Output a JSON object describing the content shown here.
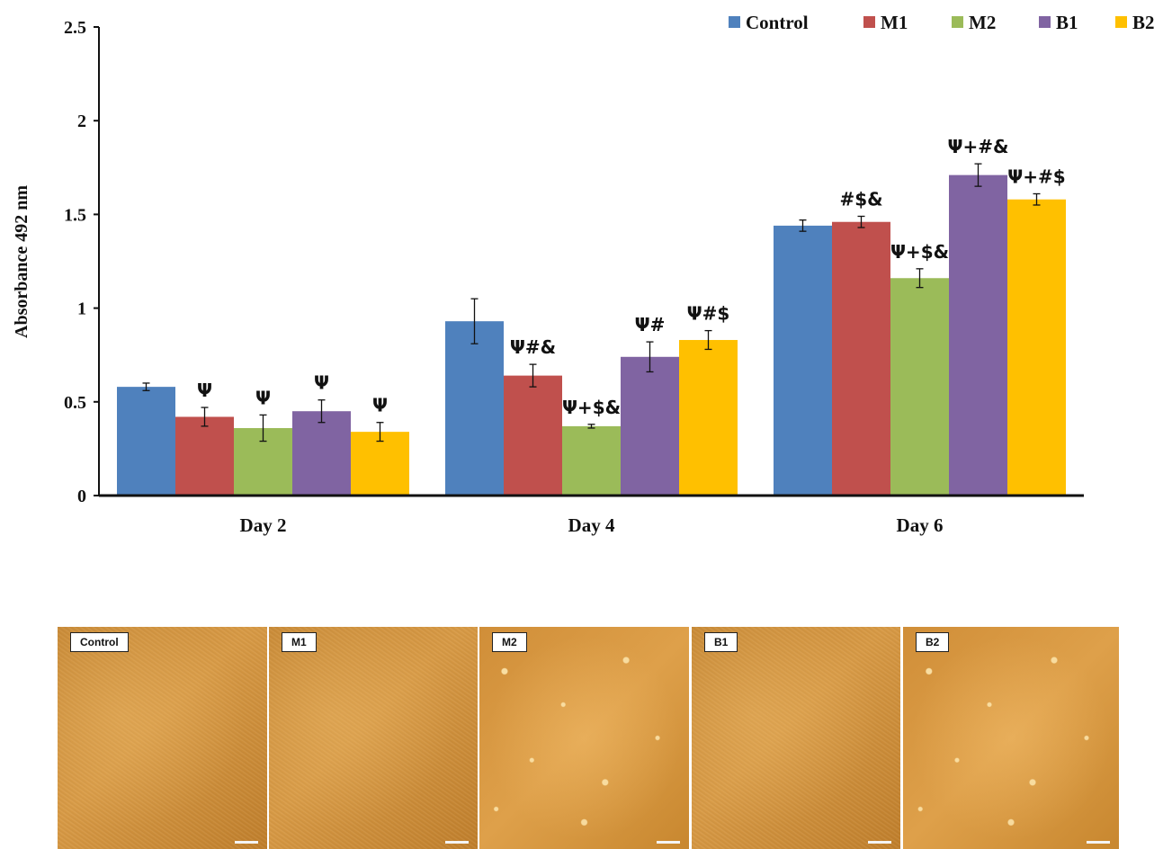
{
  "chart_data": {
    "type": "bar",
    "title": "",
    "xlabel": "",
    "ylabel": "Absorbance 492 nm",
    "ylim": [
      0,
      2.5
    ],
    "yticks": [
      "0",
      "0.5",
      "1",
      "1.5",
      "2",
      "2.5"
    ],
    "categories": [
      "Day 2",
      "Day 4",
      "Day  6"
    ],
    "legend_position": "top-right",
    "grid": false,
    "series": [
      {
        "name": "Control",
        "color": "#4F81BD",
        "values": [
          0.58,
          0.93,
          1.44
        ],
        "errors": [
          0.02,
          0.12,
          0.03
        ],
        "annotations": [
          "",
          "",
          ""
        ]
      },
      {
        "name": "M1",
        "color": "#C0504D",
        "values": [
          0.42,
          0.64,
          1.46
        ],
        "errors": [
          0.05,
          0.06,
          0.03
        ],
        "annotations": [
          "Ψ",
          "Ψ#&",
          "#$&"
        ]
      },
      {
        "name": "M2",
        "color": "#9BBB59",
        "values": [
          0.36,
          0.37,
          1.16
        ],
        "errors": [
          0.07,
          0.01,
          0.05
        ],
        "annotations": [
          "Ψ",
          "Ψ+$&",
          "Ψ+$&"
        ]
      },
      {
        "name": "B1",
        "color": "#8064A2",
        "values": [
          0.45,
          0.74,
          1.71
        ],
        "errors": [
          0.06,
          0.08,
          0.06
        ],
        "annotations": [
          "Ψ",
          "Ψ#",
          "Ψ+#&"
        ]
      },
      {
        "name": "B2",
        "color": "#FFC000",
        "values": [
          0.34,
          0.83,
          1.58
        ],
        "errors": [
          0.05,
          0.05,
          0.03
        ],
        "annotations": [
          "Ψ",
          "Ψ#$",
          "Ψ+#$"
        ]
      }
    ]
  },
  "panels": [
    {
      "label": "Control"
    },
    {
      "label": "M1"
    },
    {
      "label": "M2"
    },
    {
      "label": "B1"
    },
    {
      "label": "B2"
    }
  ]
}
